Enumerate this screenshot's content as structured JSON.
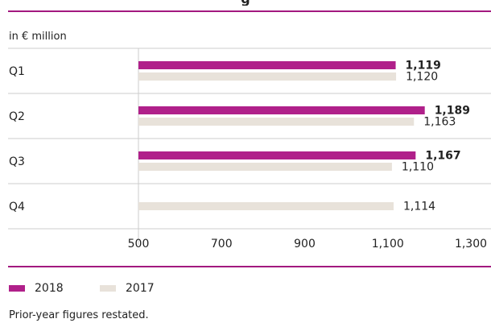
{
  "header": {
    "title_fragment": "g"
  },
  "colors": {
    "accent": "#a3197f",
    "series_2018": "#b0208a",
    "series_2017": "#e8e2da",
    "grid": "#cccccc",
    "text": "#222222"
  },
  "chart_data": {
    "type": "bar",
    "orientation": "horizontal",
    "unit_label": "in € million",
    "categories": [
      "Q1",
      "Q2",
      "Q3",
      "Q4"
    ],
    "series": [
      {
        "name": "2018",
        "values": [
          1119,
          1189,
          1167,
          null
        ],
        "labels": [
          "1,119",
          "1,189",
          "1,167",
          ""
        ]
      },
      {
        "name": "2017",
        "values": [
          1120,
          1163,
          1110,
          1114
        ],
        "labels": [
          "1,120",
          "1,163",
          "1,110",
          "1,114"
        ]
      }
    ],
    "x_ticks": [
      500,
      700,
      900,
      1100,
      1300
    ],
    "x_tick_labels": [
      "500",
      "700",
      "900",
      "1,100",
      "1,300"
    ],
    "xlim": [
      500,
      1300
    ],
    "grid": "horizontal row separators",
    "legend_position": "bottom-left"
  },
  "footnote": "Prior-year figures restated."
}
